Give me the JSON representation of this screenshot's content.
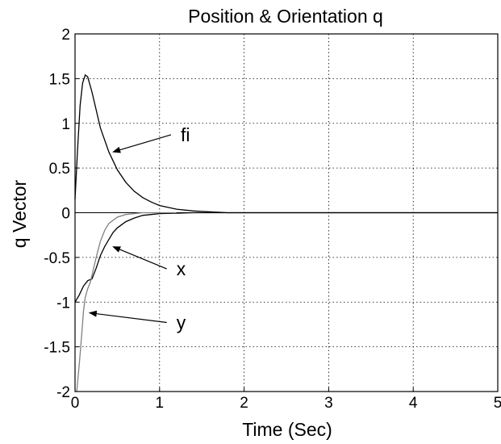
{
  "chart_data": {
    "type": "line",
    "title": "Position & Orientation q",
    "xlabel": "Time (Sec)",
    "ylabel": "q Vector",
    "xlim": [
      0,
      5
    ],
    "ylim": [
      -2,
      2
    ],
    "xticks": [
      "0",
      "1",
      "2",
      "3",
      "4",
      "5"
    ],
    "yticks": [
      "2",
      "1.5",
      "1",
      "0.5",
      "0",
      "-0.5",
      "-1",
      "-1.5",
      "-2"
    ],
    "grid": true,
    "series": [
      {
        "name": "fi",
        "color": "#000000",
        "x": [
          0,
          0.03,
          0.06,
          0.09,
          0.12,
          0.15,
          0.2,
          0.25,
          0.3,
          0.4,
          0.5,
          0.6,
          0.7,
          0.8,
          0.9,
          1.0,
          1.1,
          1.2,
          1.4,
          1.6,
          1.8,
          5
        ],
        "y": [
          0.15,
          0.7,
          1.2,
          1.45,
          1.54,
          1.52,
          1.35,
          1.15,
          0.95,
          0.68,
          0.48,
          0.34,
          0.24,
          0.17,
          0.12,
          0.08,
          0.06,
          0.04,
          0.02,
          0.01,
          0.0,
          0.0
        ]
      },
      {
        "name": "x",
        "color": "#000000",
        "x": [
          0,
          0.05,
          0.1,
          0.15,
          0.2,
          0.25,
          0.3,
          0.35,
          0.4,
          0.45,
          0.5,
          0.6,
          0.7,
          0.8,
          0.9,
          1.0,
          1.2,
          1.4,
          1.6,
          1.8,
          5
        ],
        "y": [
          -1.0,
          -0.92,
          -0.82,
          -0.76,
          -0.74,
          -0.62,
          -0.48,
          -0.38,
          -0.3,
          -0.22,
          -0.17,
          -0.1,
          -0.06,
          -0.03,
          -0.02,
          -0.01,
          -0.005,
          0.0,
          0.0,
          0.0,
          0.0
        ]
      },
      {
        "name": "y",
        "color": "#808080",
        "x": [
          0.02,
          0.05,
          0.08,
          0.1,
          0.12,
          0.15,
          0.18,
          0.2,
          0.25,
          0.3,
          0.35,
          0.4,
          0.5,
          0.6,
          0.7,
          0.8,
          1.0,
          1.2
        ],
        "y": [
          -2.0,
          -1.7,
          -1.35,
          -1.1,
          -0.95,
          -0.85,
          -0.78,
          -0.7,
          -0.5,
          -0.32,
          -0.2,
          -0.12,
          -0.05,
          -0.02,
          -0.01,
          0.0,
          0.0,
          0.0
        ]
      }
    ],
    "annotations": [
      {
        "text": "fi",
        "x": 1.25,
        "y": 0.8,
        "arrow_to_x": 0.45,
        "arrow_to_y": 0.68
      },
      {
        "text": "x",
        "x": 1.2,
        "y": -0.7,
        "arrow_to_x": 0.45,
        "arrow_to_y": -0.38
      },
      {
        "text": "y",
        "x": 1.2,
        "y": -1.3,
        "arrow_to_x": 0.17,
        "arrow_to_y": -1.12
      }
    ]
  }
}
